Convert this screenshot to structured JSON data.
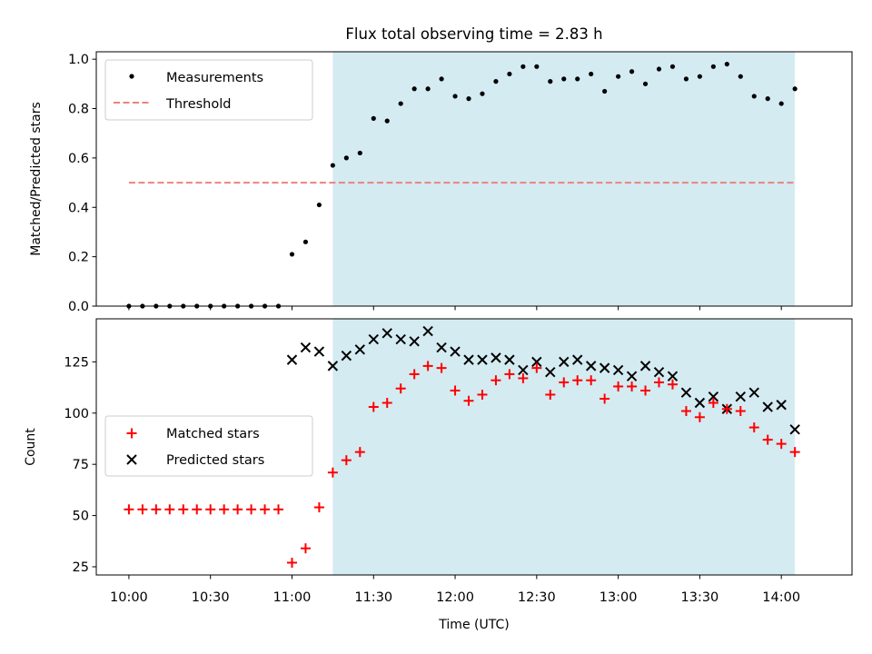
{
  "title": "Flux total observing time = 2.83 h",
  "colors": {
    "shade": "#d4ebf2",
    "threshold": "#f08080",
    "measurements": "#000000",
    "matched": "#ff0000",
    "predicted": "#000000"
  },
  "chart_data": [
    {
      "type": "scatter",
      "panel": "top",
      "title": "Flux total observing time = 2.83 h",
      "xlabel": "",
      "ylabel": "Matched/Predicted stars",
      "xlim": [
        "09:48",
        "14:26"
      ],
      "ylim": [
        0,
        1.03
      ],
      "yticks": [
        "0.0",
        "0.2",
        "0.4",
        "0.6",
        "0.8",
        "1.0"
      ],
      "shaded_region": [
        "11:15",
        "14:05"
      ],
      "legend_placement": "upper-left",
      "legend": [
        {
          "label": "Measurements",
          "marker": "dot"
        },
        {
          "label": "Threshold",
          "marker": "dashed-line"
        }
      ],
      "threshold": {
        "name": "Threshold",
        "value": 0.5,
        "x": [
          "10:00",
          "14:05"
        ]
      },
      "series": [
        {
          "name": "Measurements",
          "x": [
            "10:00",
            "10:05",
            "10:10",
            "10:15",
            "10:20",
            "10:25",
            "10:30",
            "10:35",
            "10:40",
            "10:45",
            "10:50",
            "10:55",
            "11:00",
            "11:05",
            "11:10",
            "11:15",
            "11:20",
            "11:25",
            "11:30",
            "11:35",
            "11:40",
            "11:45",
            "11:50",
            "11:55",
            "12:00",
            "12:05",
            "12:10",
            "12:15",
            "12:20",
            "12:25",
            "12:30",
            "12:35",
            "12:40",
            "12:45",
            "12:50",
            "12:55",
            "13:00",
            "13:05",
            "13:10",
            "13:15",
            "13:20",
            "13:25",
            "13:30",
            "13:35",
            "13:40",
            "13:45",
            "13:50",
            "13:55",
            "14:00",
            "14:05"
          ],
          "y": [
            0,
            0,
            0,
            0,
            0,
            0,
            0,
            0,
            0,
            0,
            0,
            0,
            0.21,
            0.26,
            0.41,
            0.57,
            0.6,
            0.62,
            0.76,
            0.75,
            0.82,
            0.88,
            0.88,
            0.92,
            0.85,
            0.84,
            0.86,
            0.91,
            0.94,
            0.97,
            0.97,
            0.91,
            0.92,
            0.92,
            0.94,
            0.87,
            0.93,
            0.95,
            0.9,
            0.96,
            0.97,
            0.92,
            0.93,
            0.97,
            0.98,
            0.93,
            0.85,
            0.84,
            0.82,
            0.88
          ]
        }
      ]
    },
    {
      "type": "scatter",
      "panel": "bottom",
      "xlabel": "Time (UTC)",
      "ylabel": "Count",
      "xlim": [
        "09:48",
        "14:26"
      ],
      "ylim": [
        21,
        146
      ],
      "xticks": [
        "10:00",
        "10:30",
        "11:00",
        "11:30",
        "12:00",
        "12:30",
        "13:00",
        "13:30",
        "14:00"
      ],
      "yticks": [
        "25",
        "50",
        "75",
        "100",
        "125"
      ],
      "shaded_region": [
        "11:15",
        "14:05"
      ],
      "legend_placement": "center-left",
      "legend": [
        {
          "label": "Matched stars",
          "marker": "plus"
        },
        {
          "label": "Predicted stars",
          "marker": "cross"
        }
      ],
      "series": [
        {
          "name": "Matched stars",
          "x": [
            "10:00",
            "10:05",
            "10:10",
            "10:15",
            "10:20",
            "10:25",
            "10:30",
            "10:35",
            "10:40",
            "10:45",
            "10:50",
            "10:55",
            "11:00",
            "11:05",
            "11:10",
            "11:15",
            "11:20",
            "11:25",
            "11:30",
            "11:35",
            "11:40",
            "11:45",
            "11:50",
            "11:55",
            "12:00",
            "12:05",
            "12:10",
            "12:15",
            "12:20",
            "12:25",
            "12:30",
            "12:35",
            "12:40",
            "12:45",
            "12:50",
            "12:55",
            "13:00",
            "13:05",
            "13:10",
            "13:15",
            "13:20",
            "13:25",
            "13:30",
            "13:35",
            "13:40",
            "13:45",
            "13:50",
            "13:55",
            "14:00",
            "14:05"
          ],
          "y": [
            53,
            53,
            53,
            53,
            53,
            53,
            53,
            53,
            53,
            53,
            53,
            53,
            27,
            34,
            54,
            71,
            77,
            81,
            103,
            105,
            112,
            119,
            123,
            122,
            111,
            106,
            109,
            116,
            119,
            117,
            122,
            109,
            115,
            116,
            116,
            107,
            113,
            113,
            111,
            115,
            114,
            101,
            98,
            105,
            102,
            101,
            93,
            87,
            85,
            81
          ]
        },
        {
          "name": "Predicted stars",
          "x": [
            "11:00",
            "11:05",
            "11:10",
            "11:15",
            "11:20",
            "11:25",
            "11:30",
            "11:35",
            "11:40",
            "11:45",
            "11:50",
            "11:55",
            "12:00",
            "12:05",
            "12:10",
            "12:15",
            "12:20",
            "12:25",
            "12:30",
            "12:35",
            "12:40",
            "12:45",
            "12:50",
            "12:55",
            "13:00",
            "13:05",
            "13:10",
            "13:15",
            "13:20",
            "13:25",
            "13:30",
            "13:35",
            "13:40",
            "13:45",
            "13:50",
            "13:55",
            "14:00",
            "14:05"
          ],
          "y": [
            126,
            132,
            130,
            123,
            128,
            131,
            136,
            139,
            136,
            135,
            140,
            132,
            130,
            126,
            126,
            127,
            126,
            121,
            125,
            120,
            125,
            126,
            123,
            122,
            121,
            118,
            123,
            120,
            118,
            110,
            105,
            108,
            102,
            108,
            110,
            103,
            104,
            92
          ]
        }
      ]
    }
  ]
}
